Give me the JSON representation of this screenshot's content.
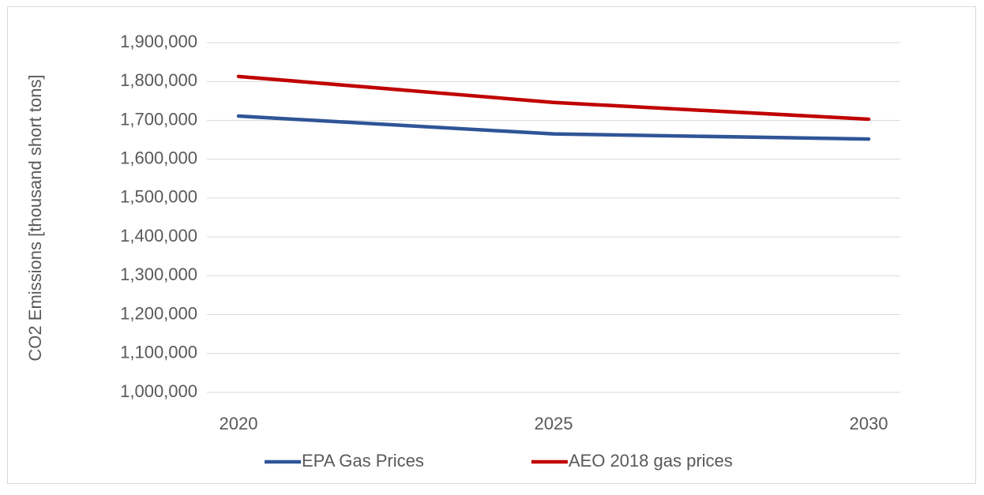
{
  "chart_data": {
    "type": "line",
    "y_label": "CO2 Emissions [thousand short tons]",
    "categories": [
      "2020",
      "2025",
      "2030"
    ],
    "series": [
      {
        "name": "EPA Gas Prices",
        "color": "#2f5597",
        "values": [
          1711000,
          1665000,
          1652000
        ]
      },
      {
        "name": "AEO 2018 gas prices",
        "color": "#c00000",
        "values": [
          1813000,
          1746000,
          1703000
        ]
      }
    ],
    "ylim": [
      1000000,
      1900000
    ],
    "yticks": [
      {
        "value": 1000000,
        "label": "1,000,000"
      },
      {
        "value": 1100000,
        "label": "1,100,000"
      },
      {
        "value": 1200000,
        "label": "1,200,000"
      },
      {
        "value": 1300000,
        "label": "1,300,000"
      },
      {
        "value": 1400000,
        "label": "1,400,000"
      },
      {
        "value": 1500000,
        "label": "1,500,000"
      },
      {
        "value": 1600000,
        "label": "1,600,000"
      },
      {
        "value": 1700000,
        "label": "1,700,000"
      },
      {
        "value": 1800000,
        "label": "1,800,000"
      },
      {
        "value": 1900000,
        "label": "1,900,000"
      }
    ],
    "grid": true,
    "legend": "bottom"
  }
}
